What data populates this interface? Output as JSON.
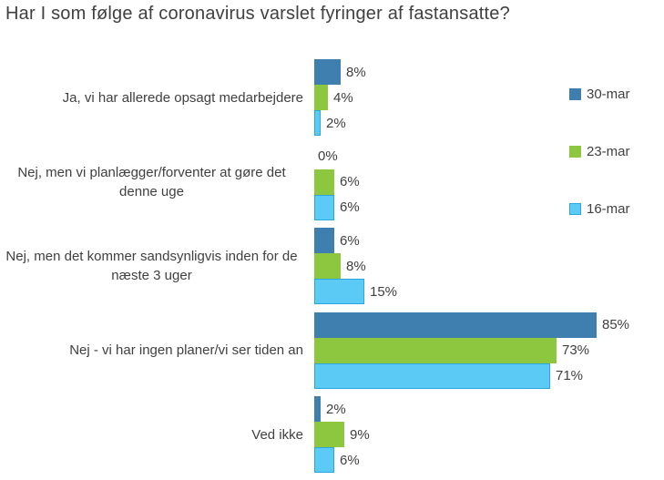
{
  "chart_data": {
    "type": "bar",
    "orientation": "horizontal",
    "title": "Har I som følge af coronavirus varslet fyringer af fastansatte?",
    "unit": "%",
    "xlim": [
      0,
      100
    ],
    "grid": false,
    "legend_position": "right",
    "categories": [
      "Ja, vi har allerede opsagt medarbejdere",
      "Nej, men vi planlægger/forventer at gøre det denne uge",
      "Nej, men det kommer sandsynligvis inden for de næste 3 uger",
      "Nej - vi har ingen planer/vi ser tiden an",
      "Ved ikke"
    ],
    "series": [
      {
        "name": "30-mar",
        "color": "#3F7FB0",
        "values": [
          8,
          0,
          6,
          85,
          2
        ]
      },
      {
        "name": "23-mar",
        "color": "#8DC63F",
        "values": [
          4,
          6,
          8,
          73,
          9
        ]
      },
      {
        "name": "16-mar",
        "color": "#5BCBF5",
        "border_color": "#2BA7DF",
        "values": [
          2,
          6,
          15,
          71,
          6
        ]
      }
    ],
    "value_labels": {
      "30-mar": [
        "8%",
        "0%",
        "6%",
        "85%",
        "2%"
      ],
      "23-mar": [
        "4%",
        "6%",
        "8%",
        "73%",
        "9%"
      ],
      "16-mar": [
        "2%",
        "6%",
        "15%",
        "71%",
        "6%"
      ]
    },
    "text_color": "#404040"
  }
}
